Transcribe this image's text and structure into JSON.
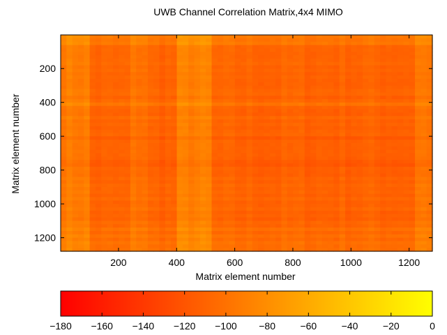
{
  "chart_data": {
    "type": "heatmap",
    "title": "UWB Channel Correlation Matrix,4x4 MIMO",
    "xlabel": "Matrix element number",
    "ylabel": "Matrix element number",
    "xlim": [
      1,
      1280
    ],
    "ylim": [
      1,
      1280
    ],
    "y_reversed": true,
    "xticks": [
      200,
      400,
      600,
      800,
      1000,
      1200
    ],
    "yticks": [
      200,
      400,
      600,
      800,
      1000,
      1200
    ],
    "colormap": "autumn",
    "color_min": "#ff0000",
    "color_max": "#ffff00",
    "clim": [
      -180,
      0
    ],
    "colorbar_ticks": [
      -180,
      -160,
      -140,
      -120,
      -100,
      -80,
      -60,
      -40,
      -20,
      0
    ],
    "colorbar_placement": "bottom",
    "base_level_db": -110,
    "bright_bands_x": [
      {
        "range": [
          0,
          100
        ],
        "level_db": -85
      },
      {
        "range": [
          240,
          300
        ],
        "level_db": -95
      },
      {
        "range": [
          400,
          520
        ],
        "level_db": -82
      },
      {
        "range": [
          1230,
          1280
        ],
        "level_db": -90
      }
    ],
    "bright_bands_y": [
      {
        "range": [
          0,
          60
        ],
        "level_db": -90
      },
      {
        "range": [
          395,
          420
        ],
        "level_db": -85
      },
      {
        "range": [
          600,
          780
        ],
        "level_db": -118
      },
      {
        "range": [
          1150,
          1280
        ],
        "level_db": -100
      }
    ],
    "grid": false
  }
}
